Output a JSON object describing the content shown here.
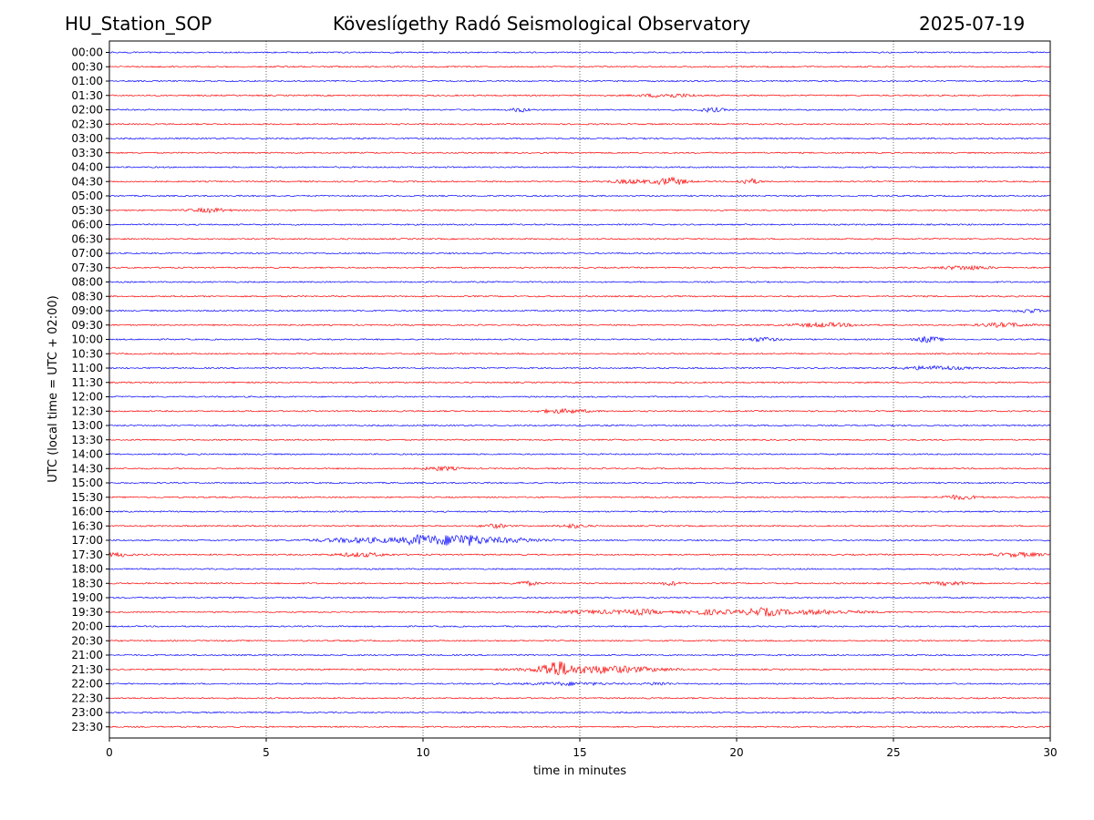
{
  "header": {
    "station": "HU_Station_SOP",
    "observatory": "Köveslígethy Radó Seismological Observatory",
    "date": "2025-07-19"
  },
  "chart_data": {
    "type": "line",
    "title": "Köveslígethy Radó Seismological Observatory",
    "xlabel": "time in minutes",
    "ylabel": "UTC (local time = UTC + 02:00)",
    "xlim": [
      0,
      30
    ],
    "x_ticks": [
      0,
      5,
      10,
      15,
      20,
      25,
      30
    ],
    "grid": "vertical dotted at each x tick",
    "colors": {
      "even_hour_trace": "#0000ff",
      "half_hour_trace": "#ff0000"
    },
    "traces": [
      {
        "label": "00:00",
        "events": []
      },
      {
        "label": "00:30",
        "events": []
      },
      {
        "label": "01:00",
        "events": []
      },
      {
        "label": "01:30",
        "events": [
          {
            "t": 17.8,
            "amp": 2,
            "dur": 0.8
          }
        ]
      },
      {
        "label": "02:00",
        "events": [
          {
            "t": 13.1,
            "amp": 2,
            "dur": 0.3
          },
          {
            "t": 19.2,
            "amp": 2,
            "dur": 0.4
          }
        ]
      },
      {
        "label": "02:30",
        "events": []
      },
      {
        "label": "03:00",
        "events": []
      },
      {
        "label": "03:30",
        "events": []
      },
      {
        "label": "04:00",
        "events": []
      },
      {
        "label": "04:30",
        "events": [
          {
            "t": 16.6,
            "amp": 2,
            "dur": 0.6
          },
          {
            "t": 17.9,
            "amp": 4,
            "dur": 0.5
          },
          {
            "t": 20.4,
            "amp": 3,
            "dur": 0.3
          }
        ]
      },
      {
        "label": "05:00",
        "events": []
      },
      {
        "label": "05:30",
        "events": [
          {
            "t": 3.2,
            "amp": 2,
            "dur": 0.6
          }
        ]
      },
      {
        "label": "06:00",
        "events": []
      },
      {
        "label": "06:30",
        "events": []
      },
      {
        "label": "07:00",
        "events": []
      },
      {
        "label": "07:30",
        "events": [
          {
            "t": 27.3,
            "amp": 2,
            "dur": 0.8
          }
        ]
      },
      {
        "label": "08:00",
        "events": []
      },
      {
        "label": "08:30",
        "events": []
      },
      {
        "label": "09:00",
        "events": [
          {
            "t": 29.3,
            "amp": 2,
            "dur": 0.4
          }
        ]
      },
      {
        "label": "09:30",
        "events": [
          {
            "t": 22.8,
            "amp": 2,
            "dur": 1.0
          },
          {
            "t": 28.5,
            "amp": 2,
            "dur": 0.8
          }
        ]
      },
      {
        "label": "10:00",
        "events": [
          {
            "t": 20.8,
            "amp": 2,
            "dur": 0.5
          },
          {
            "t": 26.1,
            "amp": 3,
            "dur": 0.4
          }
        ]
      },
      {
        "label": "10:30",
        "events": []
      },
      {
        "label": "11:00",
        "events": [
          {
            "t": 26.3,
            "amp": 2,
            "dur": 1.0
          }
        ]
      },
      {
        "label": "11:30",
        "events": []
      },
      {
        "label": "12:00",
        "events": []
      },
      {
        "label": "12:30",
        "events": [
          {
            "t": 14.5,
            "amp": 2,
            "dur": 0.8
          }
        ]
      },
      {
        "label": "13:00",
        "events": []
      },
      {
        "label": "13:30",
        "events": []
      },
      {
        "label": "14:00",
        "events": []
      },
      {
        "label": "14:30",
        "events": [
          {
            "t": 10.6,
            "amp": 2,
            "dur": 0.5
          }
        ]
      },
      {
        "label": "15:00",
        "events": []
      },
      {
        "label": "15:30",
        "events": [
          {
            "t": 27.1,
            "amp": 2,
            "dur": 0.6
          }
        ]
      },
      {
        "label": "16:00",
        "events": []
      },
      {
        "label": "16:30",
        "events": [
          {
            "t": 12.3,
            "amp": 2,
            "dur": 0.4
          },
          {
            "t": 14.8,
            "amp": 2,
            "dur": 0.4
          }
        ]
      },
      {
        "label": "17:00",
        "events": [
          {
            "t": 8.2,
            "amp": 2.5,
            "dur": 1.6
          },
          {
            "t": 9.9,
            "amp": 4.5,
            "dur": 0.5
          },
          {
            "t": 11.1,
            "amp": 5,
            "dur": 0.7
          },
          {
            "t": 12.3,
            "amp": 2.5,
            "dur": 1.6
          }
        ]
      },
      {
        "label": "17:30",
        "events": [
          {
            "t": 0.3,
            "amp": 2,
            "dur": 0.4
          },
          {
            "t": 8.0,
            "amp": 2,
            "dur": 0.8
          },
          {
            "t": 29.0,
            "amp": 2,
            "dur": 0.8
          }
        ]
      },
      {
        "label": "18:00",
        "events": []
      },
      {
        "label": "18:30",
        "events": [
          {
            "t": 13.3,
            "amp": 2,
            "dur": 0.4
          },
          {
            "t": 17.9,
            "amp": 2,
            "dur": 0.3
          },
          {
            "t": 26.8,
            "amp": 2,
            "dur": 0.6
          }
        ]
      },
      {
        "label": "19:00",
        "events": []
      },
      {
        "label": "19:30",
        "events": [
          {
            "t": 15.5,
            "amp": 1.5,
            "dur": 1.6
          },
          {
            "t": 17.0,
            "amp": 2,
            "dur": 0.6
          },
          {
            "t": 19.1,
            "amp": 2.5,
            "dur": 0.8
          },
          {
            "t": 20.8,
            "amp": 3.5,
            "dur": 0.6
          },
          {
            "t": 22.5,
            "amp": 2,
            "dur": 1.6
          }
        ]
      },
      {
        "label": "20:00",
        "events": []
      },
      {
        "label": "20:30",
        "events": []
      },
      {
        "label": "21:00",
        "events": []
      },
      {
        "label": "21:30",
        "events": [
          {
            "t": 14.2,
            "amp": 7,
            "dur": 0.4
          },
          {
            "t": 15.5,
            "amp": 4,
            "dur": 2.0
          }
        ]
      },
      {
        "label": "22:00",
        "events": [
          {
            "t": 14.6,
            "amp": 1.5,
            "dur": 1.2
          },
          {
            "t": 17.5,
            "amp": 1.5,
            "dur": 0.4
          }
        ]
      },
      {
        "label": "22:30",
        "events": []
      },
      {
        "label": "23:00",
        "events": []
      },
      {
        "label": "23:30",
        "events": []
      }
    ]
  }
}
